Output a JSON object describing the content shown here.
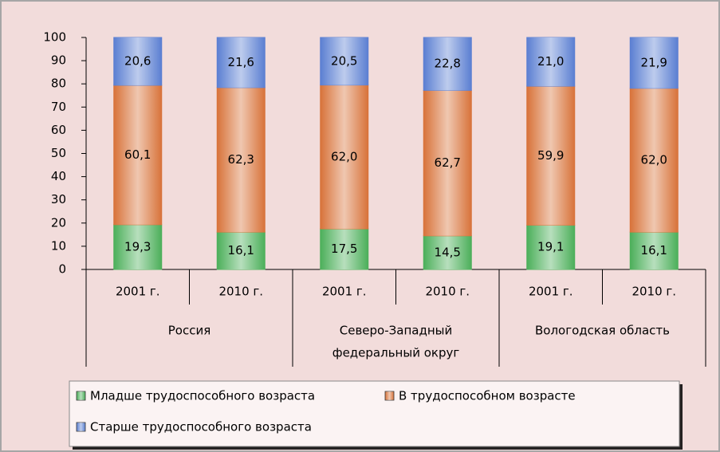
{
  "chart_data": {
    "type": "stacked-bar",
    "categories": [
      "2001 г.",
      "2010 г.",
      "2001 г.",
      "2010 г.",
      "2001 г.",
      "2010 г."
    ],
    "groups": [
      [
        "Россия"
      ],
      [
        "Северо-Западный",
        "федеральный округ"
      ],
      [
        "Вологодская область"
      ]
    ],
    "series": [
      {
        "name": "Младше трудоспособного возраста",
        "color": "#4caf5a",
        "values": [
          19.3,
          16.1,
          17.5,
          14.5,
          19.1,
          16.1
        ],
        "value_labels": [
          "19,3",
          "16,1",
          "17,5",
          "14,5",
          "19,1",
          "16,1"
        ]
      },
      {
        "name": "В трудоспособном возрасте",
        "color": "#d8733a",
        "values": [
          60.1,
          62.3,
          62.0,
          62.7,
          59.9,
          62.0
        ],
        "value_labels": [
          "60,1",
          "62,3",
          "62,0",
          "62,7",
          "59,9",
          "62,0"
        ]
      },
      {
        "name": "Старше трудоспособного возраста",
        "color": "#5b7fd2",
        "values": [
          20.6,
          21.6,
          20.5,
          22.8,
          21.0,
          21.9
        ],
        "value_labels": [
          "20,6",
          "21,6",
          "20,5",
          "22,8",
          "21,0",
          "21,9"
        ]
      }
    ],
    "ylim": [
      0,
      100
    ],
    "yticks": [
      0,
      10,
      20,
      30,
      40,
      50,
      60,
      70,
      80,
      90,
      100
    ],
    "grid": false
  }
}
